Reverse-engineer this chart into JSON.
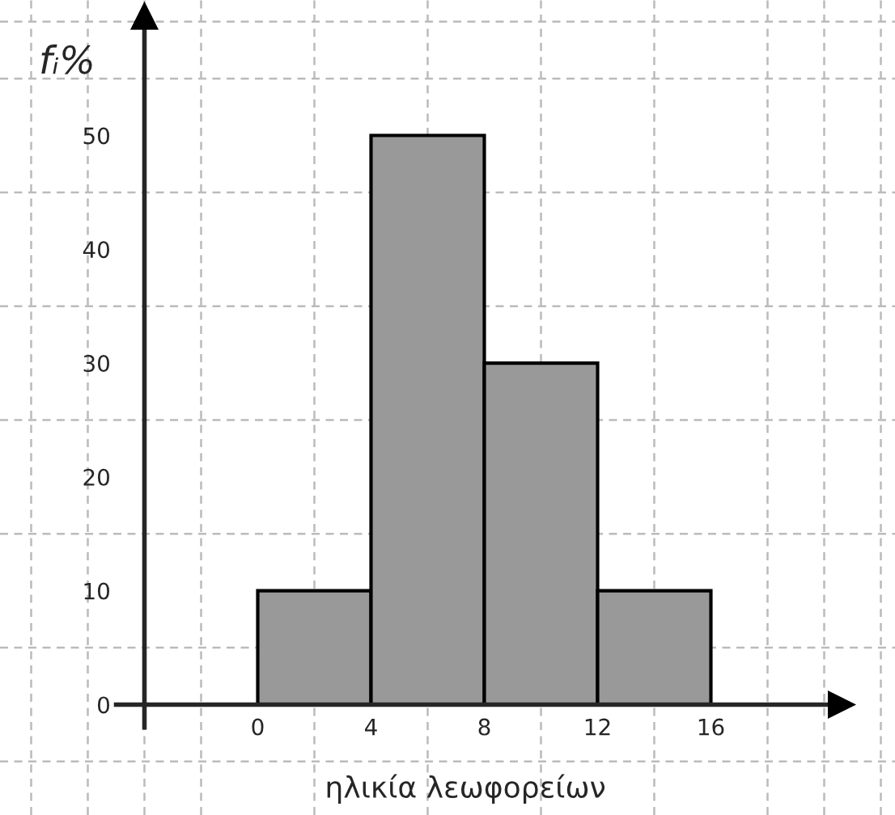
{
  "chart_data": {
    "type": "histogram",
    "xlabel": "ηλικία λεωφορείων",
    "ylabel": "fᵢ%",
    "bins": [
      0,
      4,
      8,
      12,
      16
    ],
    "values": [
      10,
      50,
      30,
      10
    ],
    "color": "#999999",
    "xlim": [
      -9.1,
      22.5
    ],
    "ylim": [
      -9.7,
      61.9
    ],
    "xticks": [
      0,
      4,
      8,
      12,
      16
    ],
    "yticks": [
      0,
      10,
      20,
      30,
      40,
      50
    ],
    "grid": true,
    "legend": false
  }
}
